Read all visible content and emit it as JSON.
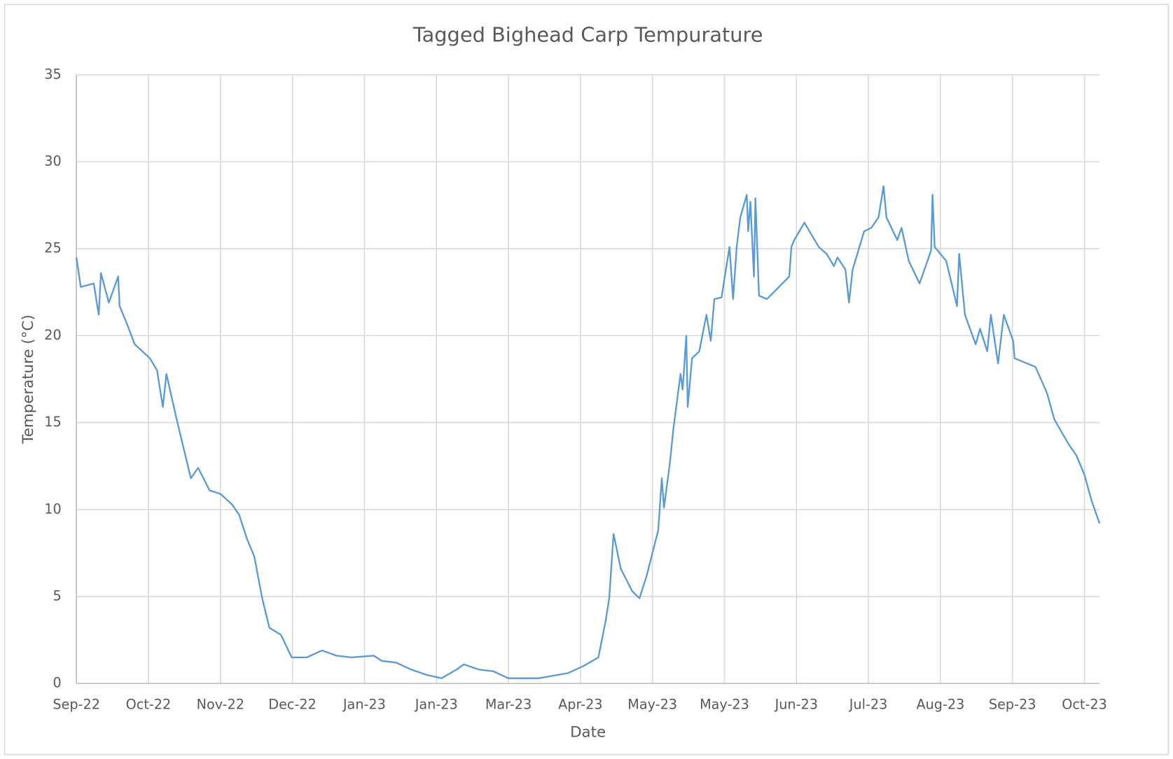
{
  "chart_data": {
    "type": "line",
    "title": "Tagged Bighead Carp Tempurature",
    "x_label": "Date",
    "y_label": "Temperature (°C)",
    "grid": true,
    "xlim": [
      0,
      14.21
    ],
    "xticks": [
      {
        "value": 0,
        "label": "Sep-22"
      },
      {
        "value": 1,
        "label": "Oct-22"
      },
      {
        "value": 2,
        "label": "Nov-22"
      },
      {
        "value": 3,
        "label": "Dec-22"
      },
      {
        "value": 4,
        "label": "Jan-23"
      },
      {
        "value": 5,
        "label": "Jan-23"
      },
      {
        "value": 6,
        "label": "Mar-23"
      },
      {
        "value": 7,
        "label": "Apr-23"
      },
      {
        "value": 8,
        "label": "May-23"
      },
      {
        "value": 9,
        "label": "May-23"
      },
      {
        "value": 10,
        "label": "Jun-23"
      },
      {
        "value": 11,
        "label": "Jul-23"
      },
      {
        "value": 12,
        "label": "Aug-23"
      },
      {
        "value": 13,
        "label": "Sep-23"
      },
      {
        "value": 14,
        "label": "Oct-23"
      }
    ],
    "ylim": [
      0,
      35
    ],
    "yticks": [
      0,
      5,
      10,
      15,
      20,
      25,
      30,
      35
    ],
    "x": [
      0,
      0.06,
      0.24,
      0.31,
      0.34,
      0.45,
      0.58,
      0.6,
      0.69,
      0.81,
      1.02,
      1.12,
      1.2,
      1.25,
      1.38,
      1.49,
      1.59,
      1.69,
      1.85,
      2.0,
      2.16,
      2.26,
      2.37,
      2.47,
      2.58,
      2.68,
      2.84,
      2.99,
      3.2,
      3.41,
      3.61,
      3.82,
      4.13,
      4.24,
      4.44,
      4.65,
      4.86,
      5.07,
      5.28,
      5.38,
      5.59,
      5.79,
      6.0,
      6.42,
      6.83,
      7.04,
      7.25,
      7.35,
      7.4,
      7.46,
      7.56,
      7.72,
      7.82,
      7.92,
      8.08,
      8.13,
      8.16,
      8.24,
      8.29,
      8.39,
      8.42,
      8.47,
      8.49,
      8.55,
      8.65,
      8.75,
      8.81,
      8.86,
      8.96,
      9.07,
      9.12,
      9.17,
      9.22,
      9.31,
      9.33,
      9.36,
      9.41,
      9.43,
      9.48,
      9.59,
      9.9,
      9.93,
      9.97,
      10.11,
      10.31,
      10.42,
      10.52,
      10.57,
      10.68,
      10.73,
      10.78,
      10.94,
      11.04,
      11.14,
      11.21,
      11.25,
      11.4,
      11.46,
      11.56,
      11.71,
      11.82,
      11.87,
      11.89,
      11.92,
      12.08,
      12.23,
      12.26,
      12.34,
      12.49,
      12.55,
      12.65,
      12.7,
      12.8,
      12.88,
      13.01,
      13.03,
      13.32,
      13.48,
      13.58,
      13.69,
      13.79,
      13.89,
      14.0,
      14.1,
      14.21
    ],
    "series": [
      {
        "color": "#5b9bd5",
        "values": [
          24.5,
          22.8,
          23.0,
          21.2,
          23.6,
          21.9,
          23.4,
          21.7,
          20.8,
          19.5,
          18.7,
          18.0,
          15.9,
          17.8,
          15.4,
          13.5,
          11.8,
          12.4,
          11.1,
          10.9,
          10.3,
          9.7,
          8.3,
          7.3,
          4.9,
          3.2,
          2.8,
          1.5,
          1.5,
          1.9,
          1.6,
          1.5,
          1.6,
          1.3,
          1.2,
          0.8,
          0.5,
          0.3,
          0.8,
          1.1,
          0.8,
          0.7,
          0.3,
          0.3,
          0.6,
          1.0,
          1.5,
          3.6,
          4.9,
          8.6,
          6.6,
          5.3,
          4.9,
          6.2,
          8.8,
          11.8,
          10.1,
          12.6,
          14.6,
          17.8,
          16.9,
          20.0,
          15.9,
          18.7,
          19.1,
          21.2,
          19.7,
          22.1,
          22.2,
          25.1,
          22.1,
          25.1,
          26.8,
          28.1,
          26.0,
          27.7,
          23.4,
          27.9,
          22.3,
          22.1,
          23.4,
          25.1,
          25.5,
          26.5,
          25.1,
          24.7,
          24.0,
          24.5,
          23.8,
          21.9,
          23.8,
          26.0,
          26.2,
          26.8,
          28.6,
          26.8,
          25.5,
          26.2,
          24.3,
          23.0,
          24.3,
          24.9,
          28.1,
          25.1,
          24.3,
          21.7,
          24.7,
          21.2,
          19.5,
          20.4,
          19.1,
          21.2,
          18.4,
          21.2,
          19.7,
          18.7,
          18.2,
          16.7,
          15.2,
          14.4,
          13.7,
          13.1,
          12.0,
          10.5,
          9.2
        ]
      }
    ]
  }
}
